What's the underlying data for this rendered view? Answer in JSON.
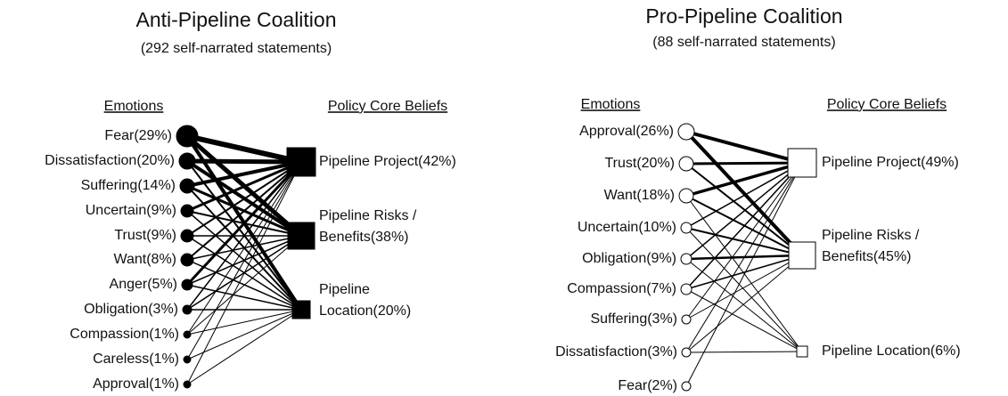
{
  "panels": [
    {
      "title": "Anti-Pipeline Coalition",
      "subtitle": "(292 self-narrated statements)",
      "emotions_header": "Emotions",
      "beliefs_header": "Policy Core Beliefs",
      "emotions": [
        "Fear(29%)",
        "Dissatisfaction(20%)",
        "Suffering(14%)",
        "Uncertain(9%)",
        "Trust(9%)",
        "Want(8%)",
        "Anger(5%)",
        "Obligation(3%)",
        "Compassion(1%)",
        "Careless(1%)",
        "Approval(1%)"
      ],
      "beliefs": [
        [
          "Pipeline Project(42%)"
        ],
        [
          "Pipeline Risks /",
          "Benefits(38%)"
        ],
        [
          "Pipeline",
          "Location(20%)"
        ]
      ]
    },
    {
      "title": "Pro-Pipeline Coalition",
      "subtitle": "(88 self-narrated statements)",
      "emotions_header": "Emotions",
      "beliefs_header": "Policy Core Beliefs",
      "emotions": [
        "Approval(26%)",
        "Trust(20%)",
        "Want(18%)",
        "Uncertain(10%)",
        "Obligation(9%)",
        "Compassion(7%)",
        "Suffering(3%)",
        "Dissatisfaction(3%)",
        "Fear(2%)"
      ],
      "beliefs": [
        [
          "Pipeline Project(49%)"
        ],
        [
          "Pipeline Risks /",
          "Benefits(45%)"
        ],
        [
          "Pipeline Location(6%)"
        ]
      ]
    }
  ]
}
